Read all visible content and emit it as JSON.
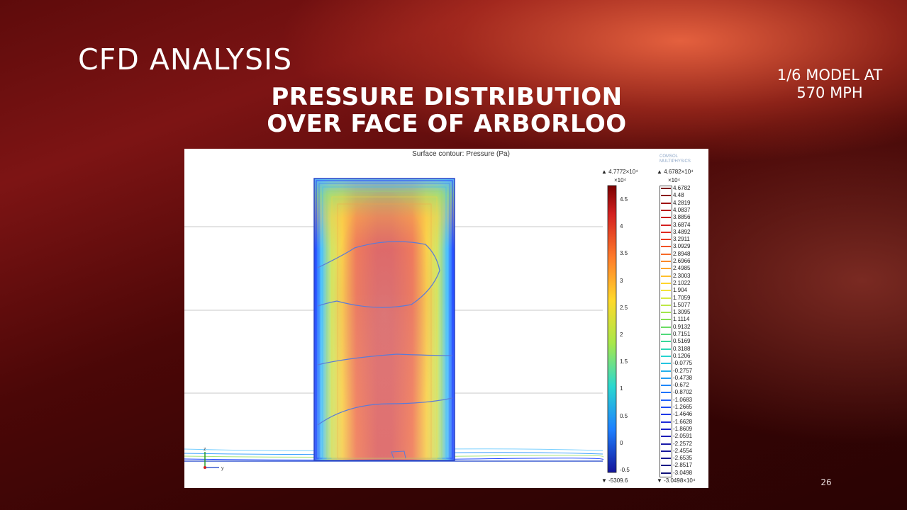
{
  "slide": {
    "title": "CFD ANALYSIS",
    "subtitle": "PRESSURE DISTRIBUTION OVER FACE OF ARBORLOO",
    "note": "1/6 MODEL AT 570 MPH",
    "page_number": "26"
  },
  "plot": {
    "title": "Surface contour: Pressure (Pa)",
    "logo_text": [
      "COMSOL",
      "MULTIPHYSICS"
    ],
    "axis_z": "z",
    "axis_y": "y",
    "surface_colorbar": {
      "max_label": "▲ 4.7772×10⁴",
      "exponent": "×10⁴",
      "min_label": "▼ -5309.6",
      "ticks": [
        "4.5",
        "4",
        "3.5",
        "3",
        "2.5",
        "2",
        "1.5",
        "1",
        "0.5",
        "0",
        "-0.5"
      ]
    },
    "contour_colorbar": {
      "max_label": "▲ 4.6782×10⁴",
      "exponent": "×10⁴",
      "min_label": "▼ -3.0498×10⁴",
      "levels": [
        "4.6782",
        "4.48",
        "4.2819",
        "4.0837",
        "3.8856",
        "3.6874",
        "3.4892",
        "3.2911",
        "3.0929",
        "2.8948",
        "2.6966",
        "2.4985",
        "2.3003",
        "2.1022",
        "1.904",
        "1.7059",
        "1.5077",
        "1.3095",
        "1.1114",
        "0.9132",
        "0.7151",
        "0.5169",
        "0.3188",
        "0.1206",
        "-0.0775",
        "-0.2757",
        "-0.4738",
        "-0.672",
        "-0.8702",
        "-1.0683",
        "-1.2665",
        "-1.4646",
        "-1.6628",
        "-1.8609",
        "-2.0591",
        "-2.2572",
        "-2.4554",
        "-2.6535",
        "-2.8517",
        "-3.0498"
      ]
    }
  }
}
